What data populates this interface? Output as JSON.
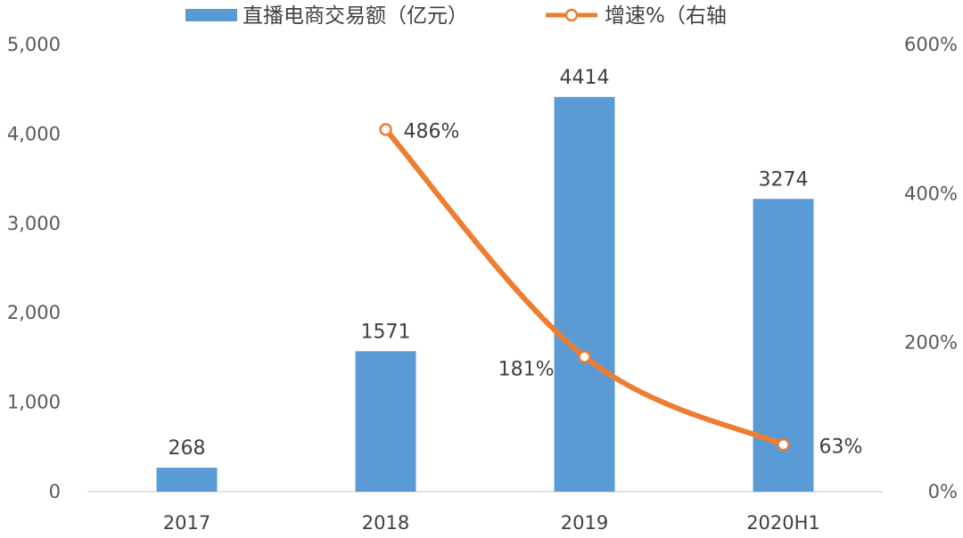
{
  "chart_data": {
    "type": "bar",
    "categories": [
      "2017",
      "2018",
      "2019",
      "2020H1"
    ],
    "series": [
      {
        "name": "直播电商交易额（亿元）",
        "type": "bar",
        "axis": "left",
        "color": "#5B9BD5",
        "values": [
          268,
          1571,
          4414,
          3274
        ],
        "labels": [
          "268",
          "1571",
          "4414",
          "3274"
        ]
      },
      {
        "name": "增速%（右轴",
        "type": "line",
        "axis": "right",
        "color": "#ED7D31",
        "values": [
          null,
          486,
          181,
          63
        ],
        "labels": [
          "",
          "486%",
          "181%",
          "63%"
        ]
      }
    ],
    "y_left": {
      "min": 0,
      "max": 5000,
      "ticks": [
        0,
        1000,
        2000,
        3000,
        4000,
        5000
      ],
      "tick_labels": [
        "0",
        "1,000",
        "2,000",
        "3,000",
        "4,000",
        "5,000"
      ]
    },
    "y_right": {
      "min": 0,
      "max": 600,
      "ticks": [
        0,
        200,
        400,
        600
      ],
      "tick_labels": [
        "0%",
        "200%",
        "400%",
        "600%"
      ]
    },
    "legend": {
      "position": "top"
    },
    "grid": false
  }
}
